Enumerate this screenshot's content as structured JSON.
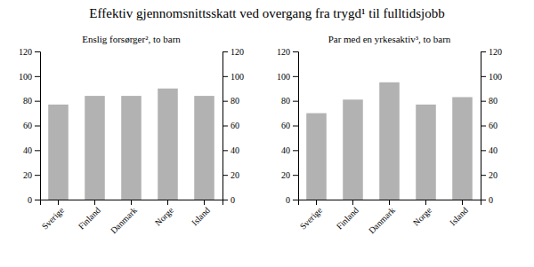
{
  "title": "Effektiv gjennomsnittsskatt ved overgang fra trygd¹ til fulltidsjobb",
  "chart_data": [
    {
      "type": "bar",
      "title": "Enslig forsørger², to barn",
      "categories": [
        "Sverige",
        "Finland",
        "Danmark",
        "Norge",
        "Island"
      ],
      "values": [
        77,
        84,
        84,
        90,
        84
      ],
      "color": "#b2b2b2",
      "ylim": [
        0,
        120
      ],
      "yticks": [
        0,
        20,
        40,
        60,
        80,
        100,
        120
      ],
      "y2lim": [
        0,
        120
      ],
      "y2ticks": [
        0,
        20,
        40,
        60,
        80,
        100,
        120
      ]
    },
    {
      "type": "bar",
      "title": "Par med en yrkesaktiv³, to barn",
      "categories": [
        "Sverige",
        "Finland",
        "Danmark",
        "Norge",
        "Island"
      ],
      "values": [
        70,
        81,
        95,
        77,
        83
      ],
      "color": "#b2b2b2",
      "ylim": [
        0,
        120
      ],
      "yticks": [
        0,
        20,
        40,
        60,
        80,
        100,
        120
      ],
      "y2lim": [
        0,
        120
      ],
      "y2ticks": [
        0,
        20,
        40,
        60,
        80,
        100,
        120
      ]
    }
  ]
}
